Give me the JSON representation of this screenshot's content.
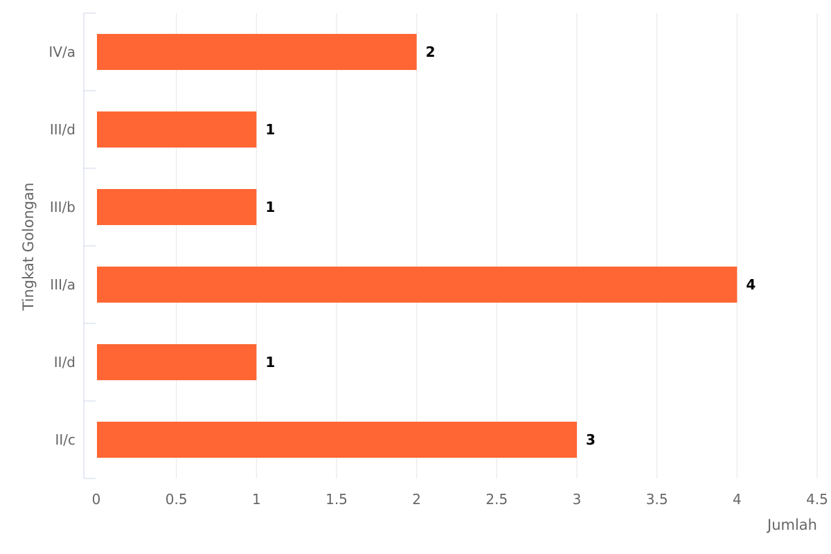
{
  "chart_data": {
    "type": "bar",
    "orientation": "horizontal",
    "categories": [
      "IV/a",
      "III/d",
      "III/b",
      "III/a",
      "II/d",
      "II/c"
    ],
    "values": [
      2,
      1,
      1,
      4,
      1,
      3
    ],
    "xlabel": "Jumlah",
    "ylabel": "Tingkat Golongan",
    "xlim": [
      0,
      4.5
    ],
    "xticks": [
      "0",
      "0.5",
      "1",
      "1.5",
      "2",
      "2.5",
      "3",
      "3.5",
      "4",
      "4.5"
    ],
    "grid": true,
    "data_labels": true,
    "bar_color": "#ff6633",
    "legend": "none"
  }
}
